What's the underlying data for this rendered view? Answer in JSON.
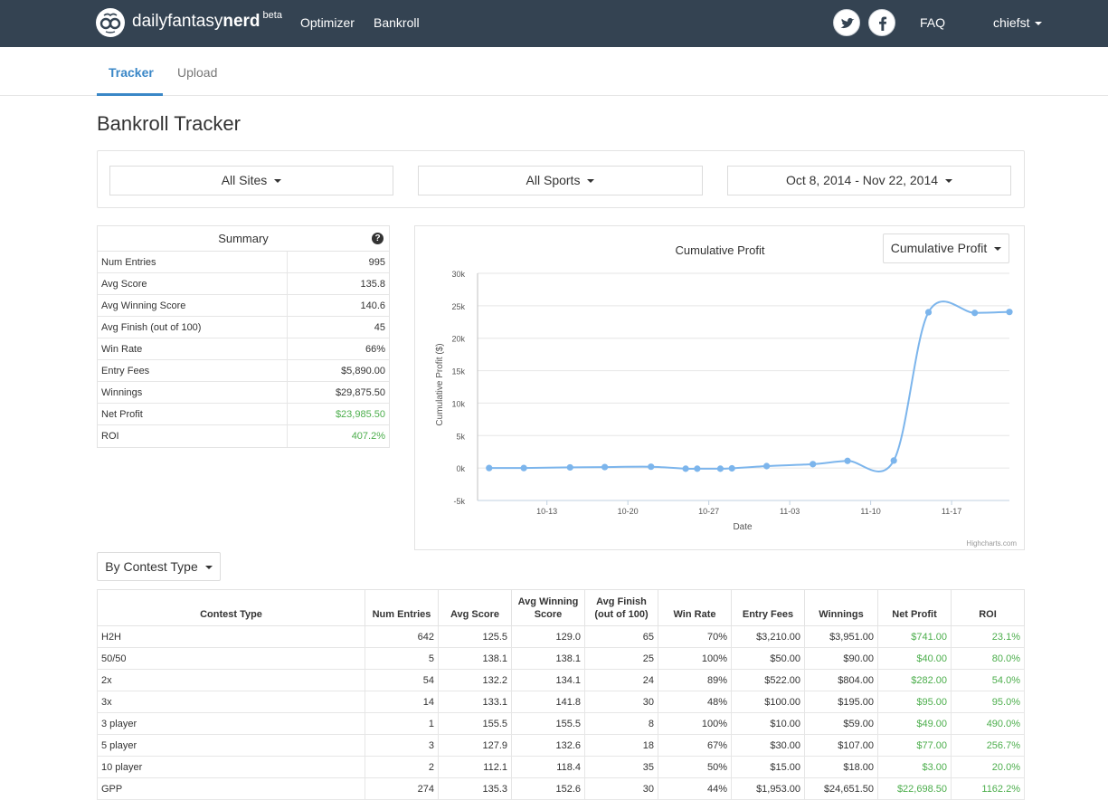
{
  "brand": {
    "name_light": "dailyfantasy",
    "name_bold": "nerd",
    "badge": "beta"
  },
  "topnav": {
    "links": [
      "Optimizer",
      "Bankroll"
    ],
    "social": [
      "twitter-icon",
      "facebook-icon"
    ],
    "faq": "FAQ",
    "user": "chiefst"
  },
  "tabs": [
    {
      "label": "Tracker",
      "active": true
    },
    {
      "label": "Upload",
      "active": false
    }
  ],
  "page_title": "Bankroll Tracker",
  "filters": {
    "site": "All Sites",
    "sport": "All Sports",
    "date_range": "Oct 8, 2014 - Nov 22, 2014"
  },
  "summary": {
    "title": "Summary",
    "rows": [
      {
        "label": "Num Entries",
        "value": "995"
      },
      {
        "label": "Avg Score",
        "value": "135.8"
      },
      {
        "label": "Avg Winning Score",
        "value": "140.6"
      },
      {
        "label": "Avg Finish (out of 100)",
        "value": "45"
      },
      {
        "label": "Win Rate",
        "value": "66%"
      },
      {
        "label": "Entry Fees",
        "value": "$5,890.00"
      },
      {
        "label": "Winnings",
        "value": "$29,875.50"
      },
      {
        "label": "Net Profit",
        "value": "$23,985.50",
        "positive": true
      },
      {
        "label": "ROI",
        "value": "407.2%",
        "positive": true
      }
    ]
  },
  "chart_select": "Cumulative Profit",
  "chart_credits": "Highcharts.com",
  "chart_data": {
    "type": "line",
    "title": "Cumulative Profit",
    "xlabel": "Date",
    "ylabel": "Cumulative Profit ($)",
    "ylim": [
      -5000,
      30000
    ],
    "yticks": [
      -5000,
      0,
      5000,
      10000,
      15000,
      20000,
      25000,
      30000
    ],
    "ytick_labels": [
      "-5k",
      "0k",
      "5k",
      "10k",
      "15k",
      "20k",
      "25k",
      "30k"
    ],
    "xlim": [
      "2014-10-07",
      "2014-11-22"
    ],
    "xticks": [
      "2014-10-13",
      "2014-10-20",
      "2014-10-27",
      "2014-11-03",
      "2014-11-10",
      "2014-11-17"
    ],
    "xtick_labels": [
      "10-13",
      "10-20",
      "10-27",
      "11-03",
      "11-10",
      "11-17"
    ],
    "grid": true,
    "color": "#7cb5ec",
    "series": [
      {
        "x": [
          "2014-10-08",
          "2014-10-11",
          "2014-10-15",
          "2014-10-18",
          "2014-10-22",
          "2014-10-25",
          "2014-10-26",
          "2014-10-28",
          "2014-10-29",
          "2014-11-01",
          "2014-11-05",
          "2014-11-08",
          "2014-11-12",
          "2014-11-15",
          "2014-11-19",
          "2014-11-22"
        ],
        "y": [
          0,
          0,
          100,
          150,
          200,
          -100,
          -100,
          -100,
          -50,
          300,
          600,
          1100,
          1150,
          24000,
          23900,
          24050
        ]
      }
    ]
  },
  "contest_filter": "By Contest Type",
  "contest_table": {
    "headers": [
      "Contest Type",
      "Num Entries",
      "Avg Score",
      "Avg Winning Score",
      "Avg Finish (out of 100)",
      "Win Rate",
      "Entry Fees",
      "Winnings",
      "Net Profit",
      "ROI"
    ],
    "rows": [
      [
        "H2H",
        "642",
        "125.5",
        "129.0",
        "65",
        "70%",
        "$3,210.00",
        "$3,951.00",
        "$741.00",
        "23.1%"
      ],
      [
        "50/50",
        "5",
        "138.1",
        "138.1",
        "25",
        "100%",
        "$50.00",
        "$90.00",
        "$40.00",
        "80.0%"
      ],
      [
        "2x",
        "54",
        "132.2",
        "134.1",
        "24",
        "89%",
        "$522.00",
        "$804.00",
        "$282.00",
        "54.0%"
      ],
      [
        "3x",
        "14",
        "133.1",
        "141.8",
        "30",
        "48%",
        "$100.00",
        "$195.00",
        "$95.00",
        "95.0%"
      ],
      [
        "3 player",
        "1",
        "155.5",
        "155.5",
        "8",
        "100%",
        "$10.00",
        "$59.00",
        "$49.00",
        "490.0%"
      ],
      [
        "5 player",
        "3",
        "127.9",
        "132.6",
        "18",
        "67%",
        "$30.00",
        "$107.00",
        "$77.00",
        "256.7%"
      ],
      [
        "10 player",
        "2",
        "112.1",
        "118.4",
        "35",
        "50%",
        "$15.00",
        "$18.00",
        "$3.00",
        "20.0%"
      ],
      [
        "GPP",
        "274",
        "135.3",
        "152.6",
        "30",
        "44%",
        "$1,953.00",
        "$24,651.50",
        "$22,698.50",
        "1162.2%"
      ]
    ]
  }
}
